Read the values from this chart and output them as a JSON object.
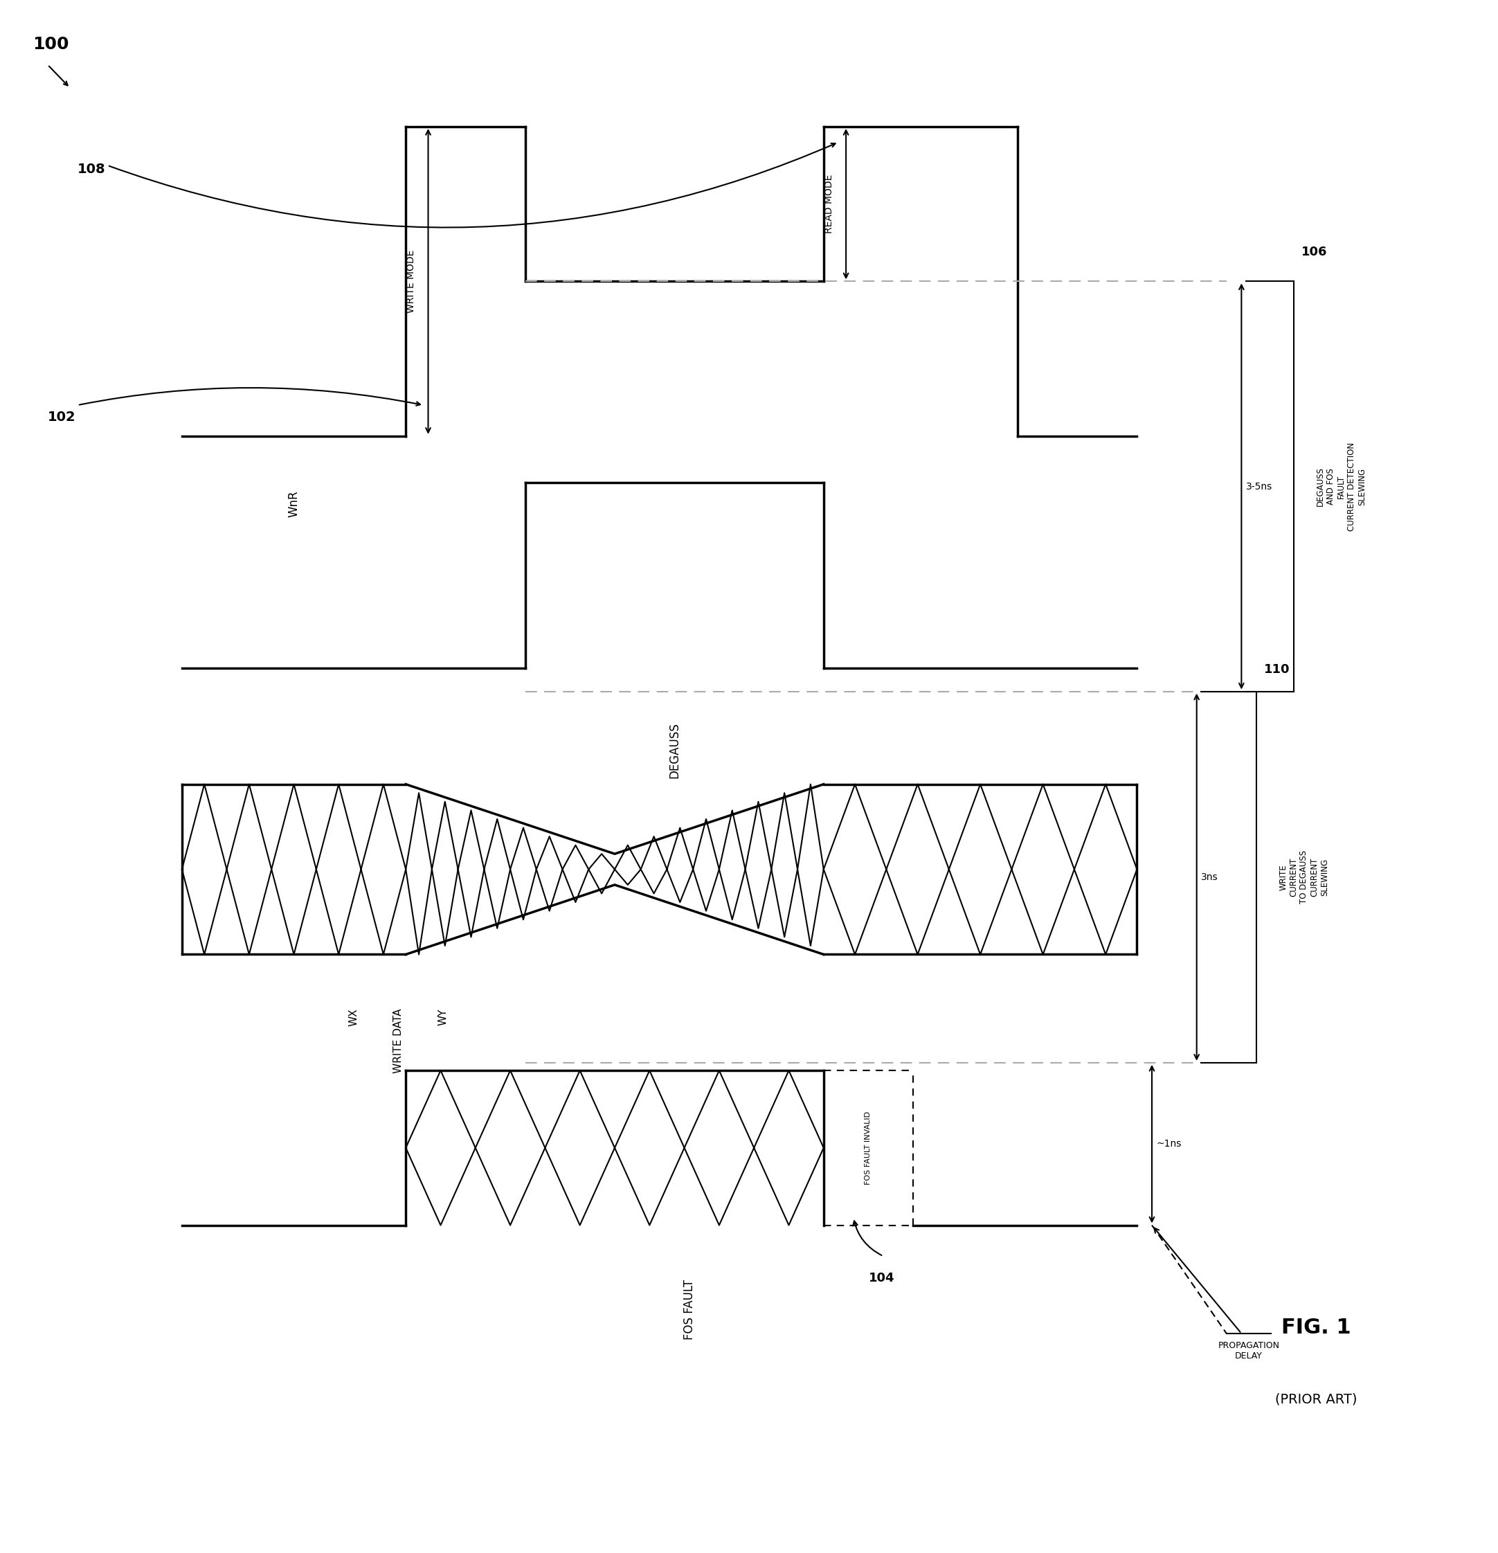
{
  "fig_width": 21.64,
  "fig_height": 22.43,
  "bg_color": "#ffffff",
  "lc": "#000000",
  "gray": "#aaaaaa",
  "label_100": "100",
  "label_102": "102",
  "label_104": "104",
  "label_106": "106",
  "label_108": "108",
  "label_110": "110",
  "fig1_label": "FIG. 1",
  "prior_art": "(PRIOR ART)",
  "write_mode": "WRITE MODE",
  "read_mode": "READ MODE",
  "fos_invalid": "FOS FAULT INVALID",
  "prop_delay": "PROPAGATION\nDELAY",
  "t1": "~1ns",
  "t2": "3ns",
  "t3": "3-5ns",
  "lbl106_line1": "DEGAUSS",
  "lbl106_line2": "AND FOS",
  "lbl106_line3": "FAULT",
  "lbl106_line4": "CURRENT DETECTION",
  "lbl106_line5": "SLEWING",
  "lbl110_line1": "WRITE",
  "lbl110_line2": "CURRENT",
  "lbl110_line3": "TO DEGAUSS",
  "lbl110_line4": "CURRENT",
  "lbl110_line5": "SLEWING",
  "sig_wnr": "WnR",
  "sig_deg": "DEGAUSS",
  "sig_wx": "WX",
  "sig_wd": "WRITE DATA",
  "sig_wy": "WY",
  "sig_fos": "FOS FAULT",
  "xlim": [
    0,
    100
  ],
  "ylim": [
    0,
    100
  ],
  "xL": 12,
  "xW1": 27,
  "xW2": 35,
  "xG": 55,
  "xR1": 68,
  "xR": 76,
  "yWnR": 82,
  "yDeg": 63,
  "yWX": 44,
  "yFOS": 26,
  "sh_wnr": 10,
  "sh_deg": 6,
  "sh_wx": 18,
  "sh_fos": 5,
  "lw": 2.5,
  "lw2": 1.5
}
